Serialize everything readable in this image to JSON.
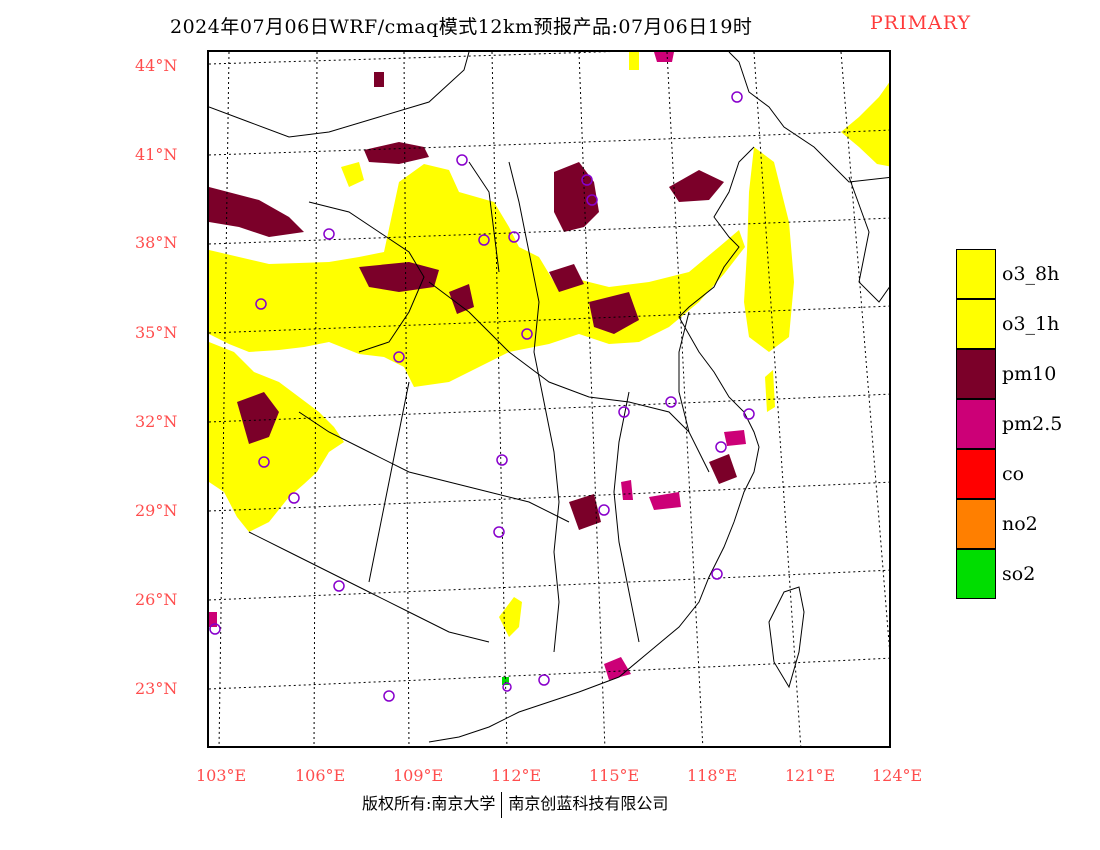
{
  "title": {
    "main": "2024年07月06日WRF/cmaq模式12km预报产品:07月06日19时",
    "tag": "PRIMARY"
  },
  "axes": {
    "lat_labels": [
      "44°N",
      "41°N",
      "38°N",
      "35°N",
      "32°N",
      "29°N",
      "26°N",
      "23°N"
    ],
    "lon_labels": [
      "103°E",
      "106°E",
      "109°E",
      "112°E",
      "115°E",
      "118°E",
      "121°E",
      "124°E"
    ]
  },
  "legend": [
    {
      "label": "o3_8h",
      "color": "#ffff00"
    },
    {
      "label": "o3_1h",
      "color": "#ffff00"
    },
    {
      "label": "pm10",
      "color": "#7b0029"
    },
    {
      "label": "pm2.5",
      "color": "#cc0077"
    },
    {
      "label": "co",
      "color": "#ff0000"
    },
    {
      "label": "no2",
      "color": "#ff7f00"
    },
    {
      "label": "so2",
      "color": "#00dd00"
    }
  ],
  "footer": {
    "left": "版权所有:南京大学",
    "right": "南京创蓝科技有限公司"
  },
  "stations": {
    "icon": "circle-marker-icon",
    "color": "#8800cc"
  }
}
